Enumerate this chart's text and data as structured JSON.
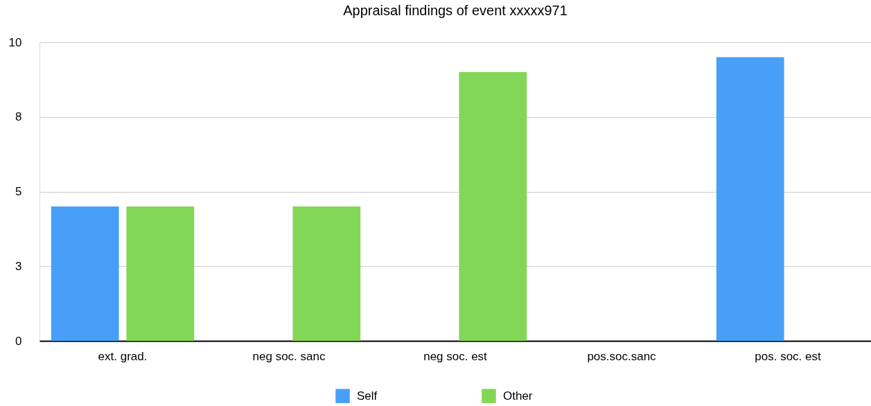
{
  "chart_data": {
    "type": "bar",
    "title": "Appraisal findings of event xxxxx971",
    "categories": [
      "ext. grad.",
      "neg soc. sanc",
      "neg soc. est",
      "pos.soc.sanc",
      "pos. soc. est"
    ],
    "series": [
      {
        "name": "Self",
        "color": "#489ff8",
        "values": [
          4.5,
          null,
          null,
          null,
          9.5
        ]
      },
      {
        "name": "Other",
        "color": "#84d657",
        "values": [
          4.5,
          4.5,
          9.0,
          null,
          null
        ]
      }
    ],
    "ylim": [
      0,
      10
    ],
    "yticks": [
      0,
      {
        "value": 2.5,
        "label": "3"
      },
      5,
      {
        "value": 7.5,
        "label": "8"
      },
      10
    ],
    "grid": "y",
    "legend": "bottom"
  }
}
